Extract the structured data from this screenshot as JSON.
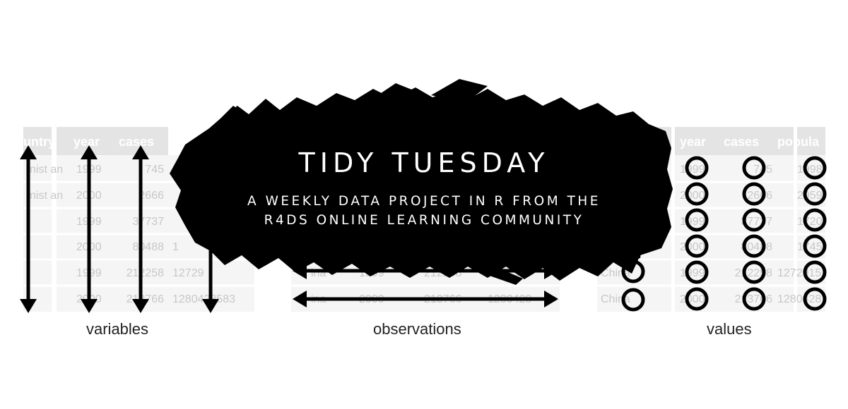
{
  "banner": {
    "title": "TIDY TUESDAY",
    "subtitle_line1": "A WEEKLY DATA PROJECT IN R FROM THE",
    "subtitle_line2": "R4DS ONLINE LEARNING COMMUNITY"
  },
  "captions": {
    "variables": "variables",
    "observations": "observations",
    "values": "values"
  },
  "left_table": {
    "headers": [
      "untry",
      "year",
      "cases"
    ],
    "country_frags": [
      "nist an",
      "nist an",
      "",
      "",
      "",
      ""
    ],
    "years": [
      "1999",
      "2000",
      "1999",
      "2000",
      "1999",
      "2000"
    ],
    "cases": [
      "745",
      "2666",
      "37737",
      "80488",
      "212258",
      "213766"
    ],
    "population_frags": [
      "",
      "",
      "",
      "1",
      "12729",
      "1280428583"
    ]
  },
  "middle_table": {
    "country_frags": [
      "ina",
      "ina"
    ],
    "years": [
      "1999",
      "2000"
    ],
    "cases": [
      "212258",
      "213766"
    ],
    "population_frags": [
      "127291",
      "1280428"
    ]
  },
  "right_table": {
    "headers": [
      "year",
      "cases",
      "popula"
    ],
    "country_frags": [
      "China",
      "China"
    ],
    "years": [
      "1999",
      "2000",
      "1999",
      "2000",
      "1999",
      "2000"
    ],
    "cases": [
      "745",
      "2666",
      "37737",
      "80488",
      "212258",
      "213766"
    ],
    "population_frags": [
      "1998",
      "2059",
      "1720",
      "1745",
      "1272915",
      "1280428"
    ]
  },
  "colors": {
    "ink": "#000000",
    "header_bg": "#cfcfcf",
    "cell_bg": "#ededed",
    "caption": "#222222"
  }
}
